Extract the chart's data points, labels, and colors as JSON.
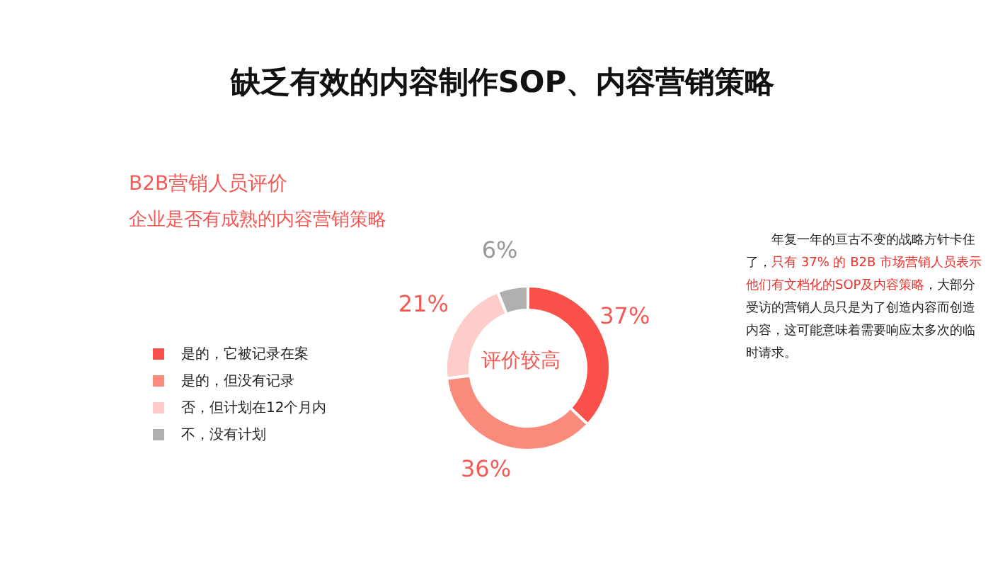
{
  "chart_data": {
    "type": "donut",
    "title": "缺乏有效的内容制作SOP、内容营销策略",
    "subtitle": "B2B营销人员评价",
    "annotations": [
      "企业是否有成熟的内容营销策略",
      "评价较高",
      "年复一年的亘古不变的战略方针卡住了，",
      "只有 37% 的 B2B 市场营销人员表示他们有文档化的SOP及内容策略",
      "，大部分受访的营销人员只是为了创造内容而创造内容，这可能意味着需要响应太多次的临时请求。"
    ],
    "categories": [
      "是的，它被记录在案",
      "是的，但没有记录",
      "否，但计划在12个月内",
      "不，没有计划"
    ],
    "values": [
      37,
      36,
      21,
      6
    ],
    "colors": [
      "#f9504a",
      "#fa8a7c",
      "#fdcccb",
      "#b0b0b0"
    ],
    "value_labels": [
      "37%",
      "36%",
      "21%",
      "6%"
    ],
    "legend": "left"
  }
}
